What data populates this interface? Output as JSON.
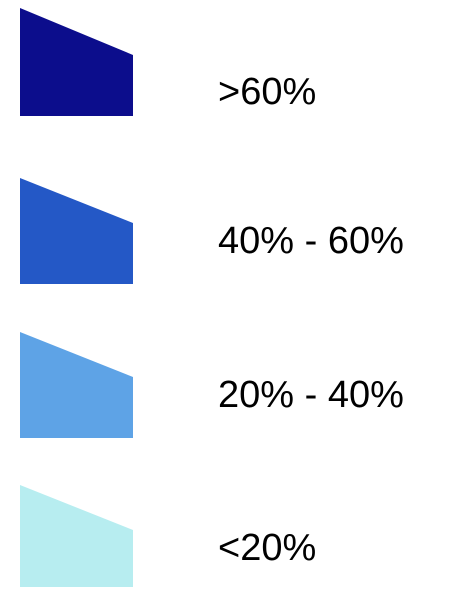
{
  "legend": {
    "items": [
      {
        "label": ">60%",
        "color": "#0c0d8c"
      },
      {
        "label": "40% - 60%",
        "color": "#2458c6"
      },
      {
        "label": "20% - 40%",
        "color": "#5ea3e6"
      },
      {
        "label": "<20%",
        "color": "#b7edf0"
      }
    ]
  }
}
